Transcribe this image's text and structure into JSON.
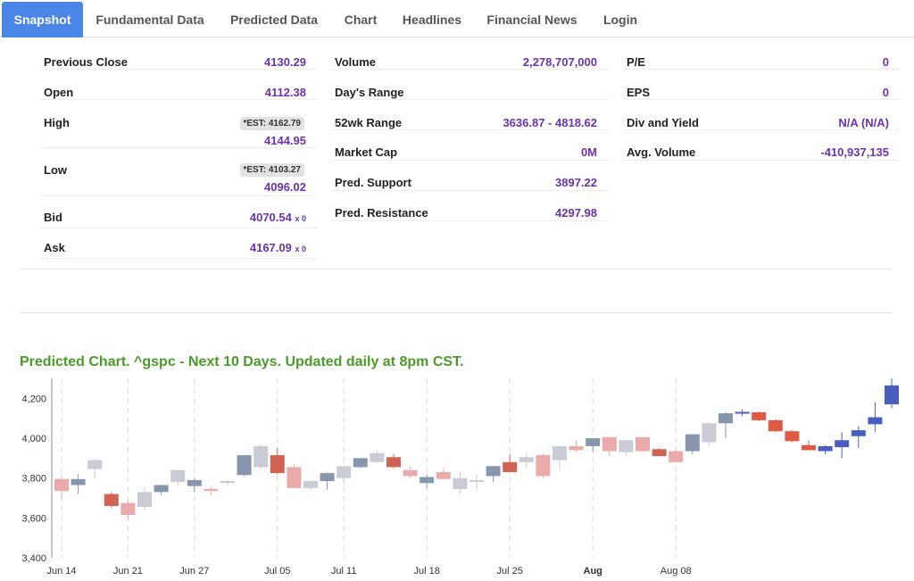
{
  "tabs": [
    {
      "label": "Snapshot",
      "active": true
    },
    {
      "label": "Fundamental Data",
      "active": false
    },
    {
      "label": "Predicted Data",
      "active": false
    },
    {
      "label": "Chart",
      "active": false
    },
    {
      "label": "Headlines",
      "active": false
    },
    {
      "label": "Financial News",
      "active": false
    },
    {
      "label": "Login",
      "active": false
    }
  ],
  "snapshot": {
    "col1": {
      "previous_close": {
        "label": "Previous Close",
        "value": "4130.29"
      },
      "open": {
        "label": "Open",
        "value": "4112.38"
      },
      "high": {
        "label": "High",
        "est": "*EST: 4162.79",
        "value": "4144.95"
      },
      "low": {
        "label": "Low",
        "est": "*EST: 4103.27",
        "value": "4096.02"
      },
      "bid": {
        "label": "Bid",
        "value": "4070.54",
        "size": "x 0"
      },
      "ask": {
        "label": "Ask",
        "value": "4167.09",
        "size": "x 0"
      }
    },
    "col2": {
      "volume": {
        "label": "Volume",
        "value": "2,278,707,000"
      },
      "days_range": {
        "label": "Day's Range",
        "value": ""
      },
      "wk52_range": {
        "label": "52wk Range",
        "value": "3636.87 - 4818.62"
      },
      "market_cap": {
        "label": "Market Cap",
        "value": "0M"
      },
      "pred_support": {
        "label": "Pred. Support",
        "value": "3897.22"
      },
      "pred_resistance": {
        "label": "Pred. Resistance",
        "value": "4297.98"
      }
    },
    "col3": {
      "pe": {
        "label": "P/E",
        "value": "0"
      },
      "eps": {
        "label": "EPS",
        "value": "0"
      },
      "div_yield": {
        "label": "Div and Yield",
        "value": "N/A (N/A)"
      },
      "avg_volume": {
        "label": "Avg. Volume",
        "value": "-410,937,135"
      }
    }
  },
  "chart_title": "Predicted Chart. ^gspc - Next 10 Days. Updated daily at 8pm CST.",
  "colors": {
    "up": "#8896ad",
    "down": "#d26352",
    "up_light": "#c9ccd5",
    "down_light": "#eaaaaa",
    "pred_up": "#4a5ec0",
    "pred_down": "#e05a43"
  },
  "chart_data": {
    "type": "candlestick",
    "title": "Predicted Chart. ^gspc - Next 10 Days. Updated daily at 8pm CST.",
    "ylim": [
      3400,
      4300
    ],
    "yticks": [
      3400,
      3600,
      3800,
      4000,
      4200
    ],
    "ytick_labels": [
      "3,400",
      "3,600",
      "3,800",
      "4,000",
      "4,200"
    ],
    "xticks": [
      {
        "label": "Jun 14",
        "index": 0,
        "bold": false
      },
      {
        "label": "Jun 21",
        "index": 4,
        "bold": false
      },
      {
        "label": "Jun 27",
        "index": 8,
        "bold": false
      },
      {
        "label": "Jul 05",
        "index": 13,
        "bold": false
      },
      {
        "label": "Jul 11",
        "index": 17,
        "bold": false
      },
      {
        "label": "Jul 18",
        "index": 22,
        "bold": false
      },
      {
        "label": "Jul 25",
        "index": 27,
        "bold": false
      },
      {
        "label": "Aug",
        "index": 32,
        "bold": true
      },
      {
        "label": "Aug 08",
        "index": 37,
        "bold": false
      }
    ],
    "candles": [
      {
        "o": 3795,
        "h": 3815,
        "l": 3700,
        "c": 3735,
        "style": "down_light"
      },
      {
        "o": 3765,
        "h": 3820,
        "l": 3720,
        "c": 3795,
        "style": "up"
      },
      {
        "o": 3845,
        "h": 3900,
        "l": 3800,
        "c": 3890,
        "style": "up_light"
      },
      {
        "o": 3720,
        "h": 3730,
        "l": 3650,
        "c": 3660,
        "style": "down"
      },
      {
        "o": 3675,
        "h": 3690,
        "l": 3590,
        "c": 3615,
        "style": "down_light"
      },
      {
        "o": 3655,
        "h": 3755,
        "l": 3640,
        "c": 3730,
        "style": "up_light"
      },
      {
        "o": 3730,
        "h": 3765,
        "l": 3715,
        "c": 3765,
        "style": "up"
      },
      {
        "o": 3780,
        "h": 3840,
        "l": 3760,
        "c": 3840,
        "style": "up_light"
      },
      {
        "o": 3760,
        "h": 3800,
        "l": 3730,
        "c": 3790,
        "style": "up"
      },
      {
        "o": 3745,
        "h": 3755,
        "l": 3715,
        "c": 3735,
        "style": "down_light"
      },
      {
        "o": 3775,
        "h": 3790,
        "l": 3760,
        "c": 3785,
        "style": "up_light"
      },
      {
        "o": 3815,
        "h": 3915,
        "l": 3810,
        "c": 3915,
        "style": "up"
      },
      {
        "o": 3855,
        "h": 3970,
        "l": 3845,
        "c": 3960,
        "style": "up_light"
      },
      {
        "o": 3915,
        "h": 3950,
        "l": 3820,
        "c": 3825,
        "style": "down"
      },
      {
        "o": 3855,
        "h": 3870,
        "l": 3750,
        "c": 3750,
        "style": "down_light"
      },
      {
        "o": 3750,
        "h": 3790,
        "l": 3735,
        "c": 3785,
        "style": "up_light"
      },
      {
        "o": 3785,
        "h": 3830,
        "l": 3740,
        "c": 3825,
        "style": "up"
      },
      {
        "o": 3800,
        "h": 3860,
        "l": 3770,
        "c": 3860,
        "style": "up_light"
      },
      {
        "o": 3855,
        "h": 3900,
        "l": 3850,
        "c": 3900,
        "style": "up"
      },
      {
        "o": 3880,
        "h": 3940,
        "l": 3875,
        "c": 3925,
        "style": "up_light"
      },
      {
        "o": 3905,
        "h": 3920,
        "l": 3850,
        "c": 3855,
        "style": "down"
      },
      {
        "o": 3840,
        "h": 3860,
        "l": 3800,
        "c": 3810,
        "style": "down_light"
      },
      {
        "o": 3775,
        "h": 3820,
        "l": 3750,
        "c": 3805,
        "style": "up"
      },
      {
        "o": 3830,
        "h": 3850,
        "l": 3800,
        "c": 3795,
        "style": "down_light"
      },
      {
        "o": 3745,
        "h": 3830,
        "l": 3720,
        "c": 3800,
        "style": "up_light"
      },
      {
        "o": 3785,
        "h": 3820,
        "l": 3740,
        "c": 3790,
        "style": "up_light"
      },
      {
        "o": 3810,
        "h": 3860,
        "l": 3780,
        "c": 3860,
        "style": "up"
      },
      {
        "o": 3880,
        "h": 3920,
        "l": 3830,
        "c": 3830,
        "style": "down"
      },
      {
        "o": 3880,
        "h": 3925,
        "l": 3850,
        "c": 3905,
        "style": "up_light"
      },
      {
        "o": 3915,
        "h": 3920,
        "l": 3800,
        "c": 3810,
        "style": "down_light"
      },
      {
        "o": 3890,
        "h": 3960,
        "l": 3840,
        "c": 3960,
        "style": "up_light"
      },
      {
        "o": 3960,
        "h": 3990,
        "l": 3930,
        "c": 3940,
        "style": "down_light"
      },
      {
        "o": 3960,
        "h": 4000,
        "l": 3930,
        "c": 4000,
        "style": "up"
      },
      {
        "o": 4005,
        "h": 4010,
        "l": 3910,
        "c": 3935,
        "style": "down_light"
      },
      {
        "o": 3930,
        "h": 3990,
        "l": 3910,
        "c": 3990,
        "style": "up_light"
      },
      {
        "o": 4005,
        "h": 4010,
        "l": 3930,
        "c": 3935,
        "style": "down_light"
      },
      {
        "o": 3945,
        "h": 3950,
        "l": 3910,
        "c": 3910,
        "style": "down"
      },
      {
        "o": 3935,
        "h": 3940,
        "l": 3880,
        "c": 3880,
        "style": "down_light"
      },
      {
        "o": 3935,
        "h": 4020,
        "l": 3920,
        "c": 4020,
        "style": "up"
      },
      {
        "o": 3980,
        "h": 4080,
        "l": 3960,
        "c": 4075,
        "style": "up_light"
      },
      {
        "o": 4075,
        "h": 4130,
        "l": 4000,
        "c": 4125,
        "style": "up"
      },
      {
        "o": 4128,
        "h": 4145,
        "l": 4110,
        "c": 4132,
        "style": "pred_up"
      },
      {
        "o": 4130,
        "h": 4135,
        "l": 4085,
        "c": 4090,
        "style": "pred_down"
      },
      {
        "o": 4090,
        "h": 4095,
        "l": 4030,
        "c": 4035,
        "style": "pred_down"
      },
      {
        "o": 4035,
        "h": 4040,
        "l": 3980,
        "c": 3985,
        "style": "pred_down"
      },
      {
        "o": 3965,
        "h": 3990,
        "l": 3940,
        "c": 3940,
        "style": "pred_down"
      },
      {
        "o": 3935,
        "h": 3965,
        "l": 3920,
        "c": 3960,
        "style": "pred_up"
      },
      {
        "o": 3955,
        "h": 4030,
        "l": 3900,
        "c": 3990,
        "style": "pred_up"
      },
      {
        "o": 4010,
        "h": 4060,
        "l": 3950,
        "c": 4040,
        "style": "pred_up"
      },
      {
        "o": 4070,
        "h": 4180,
        "l": 4030,
        "c": 4105,
        "style": "pred_up"
      },
      {
        "o": 4170,
        "h": 4300,
        "l": 4150,
        "c": 4265,
        "style": "pred_up"
      }
    ]
  }
}
